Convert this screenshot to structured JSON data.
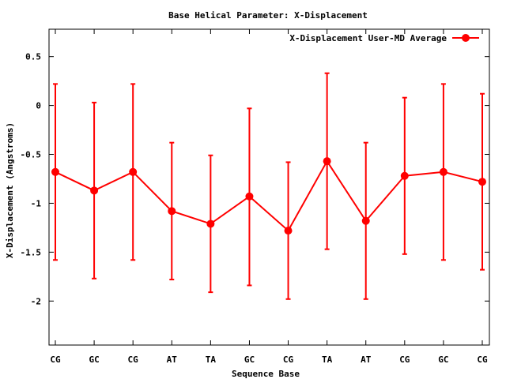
{
  "chart_data": {
    "type": "line",
    "title": "Base  Helical Parameter: X-Displacement",
    "xlabel": "Sequence Base",
    "ylabel": "X-Displacement (Angstroms)",
    "categories": [
      "CG",
      "GC",
      "CG",
      "AT",
      "TA",
      "GC",
      "CG",
      "TA",
      "AT",
      "CG",
      "GC",
      "CG"
    ],
    "ylim": [
      -2.45,
      0.78
    ],
    "yticks": [
      -2,
      -1.5,
      -1,
      -0.5,
      0,
      0.5
    ],
    "ytick_labels": [
      "-2",
      "-1.5",
      "-1",
      "-0.5",
      "0",
      "0.5"
    ],
    "grid": false,
    "legend_position": "top-right",
    "series": [
      {
        "name": "X-Displacement User-MD Average",
        "color": "#ff0000",
        "values": [
          -0.68,
          -0.87,
          -0.68,
          -1.08,
          -1.21,
          -0.93,
          -1.28,
          -0.57,
          -1.18,
          -0.72,
          -0.68,
          -0.78
        ],
        "error_low": [
          -1.58,
          -1.77,
          -1.58,
          -1.78,
          -1.91,
          -1.84,
          -1.98,
          -1.47,
          -1.98,
          -1.52,
          -1.58,
          -1.68
        ],
        "error_high": [
          0.22,
          0.03,
          0.22,
          -0.38,
          -0.51,
          -0.03,
          -0.58,
          0.33,
          -0.38,
          0.08,
          0.22,
          0.12
        ]
      }
    ]
  }
}
